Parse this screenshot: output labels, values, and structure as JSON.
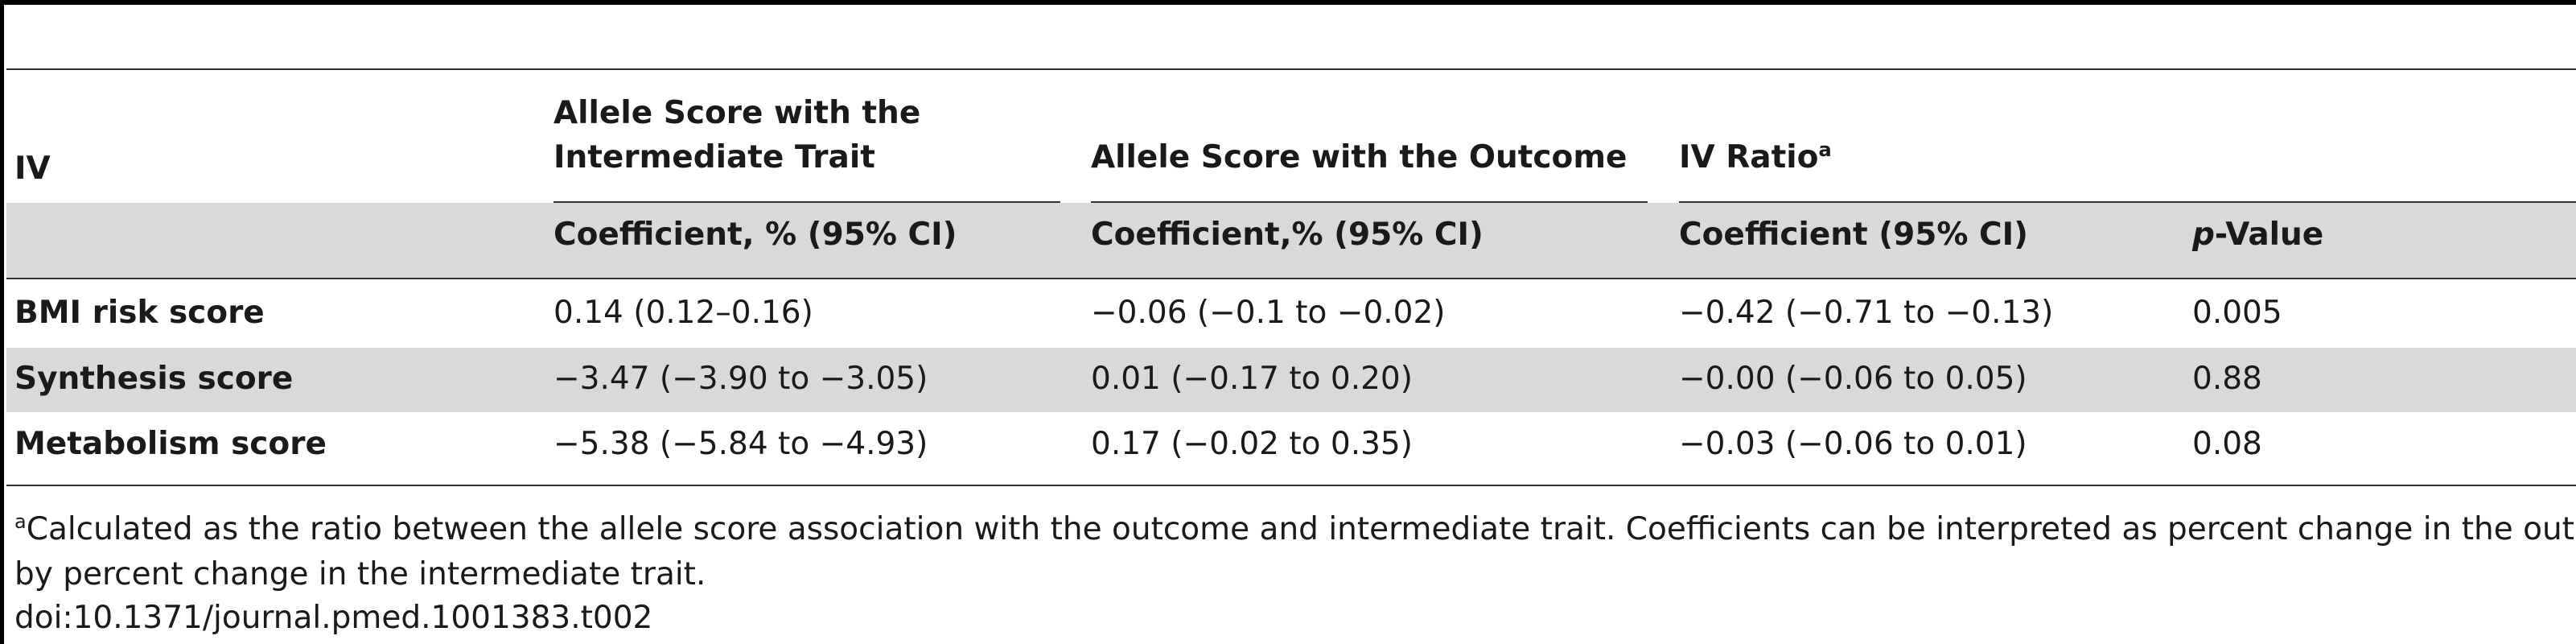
{
  "table": {
    "header": {
      "iv_label": "IV",
      "group1_line1": "Allele Score with the",
      "group1_line2": "Intermediate Trait",
      "group2": "Allele Score with the Outcome",
      "group3": "IV Ratio",
      "group3_sup": "a",
      "sub1": "Coefficient, % (95% CI)",
      "sub2": "Coefficient,% (95% CI)",
      "sub3": "Coefficient (95% CI)",
      "sub4_italic": "p",
      "sub4_rest": "-Value"
    },
    "rows": [
      {
        "label": "BMI risk score",
        "c1": "0.14 (0.12–0.16)",
        "c2": "−0.06 (−0.1 to −0.02)",
        "c3": "−0.42 (−0.71 to −0.13)",
        "c4": "0.005"
      },
      {
        "label": "Synthesis score",
        "c1": "−3.47 (−3.90 to −3.05)",
        "c2": "0.01 (−0.17 to 0.20)",
        "c3": "−0.00 (−0.06 to 0.05)",
        "c4": "0.88"
      },
      {
        "label": "Metabolism score",
        "c1": "−5.38 (−5.84 to −4.93)",
        "c2": "0.17 (−0.02 to 0.35)",
        "c3": "−0.03 (−0.06 to 0.01)",
        "c4": "0.08"
      }
    ]
  },
  "footnote": {
    "sup": "a",
    "line1": "Calculated as the ratio between the allele score association with the outcome and intermediate trait. Coefficients can be interpreted as percent change in the outcome",
    "line2": "by percent change in the intermediate trait.",
    "doi": "doi:10.1371/journal.pmed.1001383.t002"
  },
  "colors": {
    "band": "#d9d9d9",
    "text": "#1a1a1a",
    "rule": "#333333"
  }
}
